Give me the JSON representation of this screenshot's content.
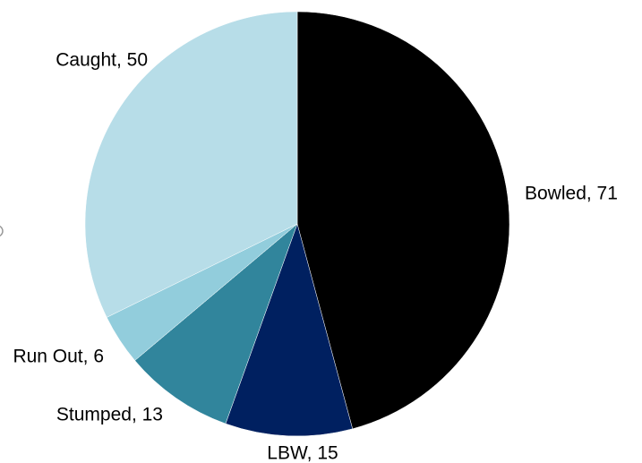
{
  "chart_data": {
    "type": "pie",
    "values": [
      71,
      15,
      13,
      6,
      50
    ],
    "value_labels": [
      "Bowled, 71",
      "LBW, 15",
      "Stumped, 13",
      "Run Out, 6",
      "Caught, 50"
    ],
    "colors": [
      "#000000",
      "#002060",
      "#31859c",
      "#92cddc",
      "#b7dde8"
    ]
  }
}
